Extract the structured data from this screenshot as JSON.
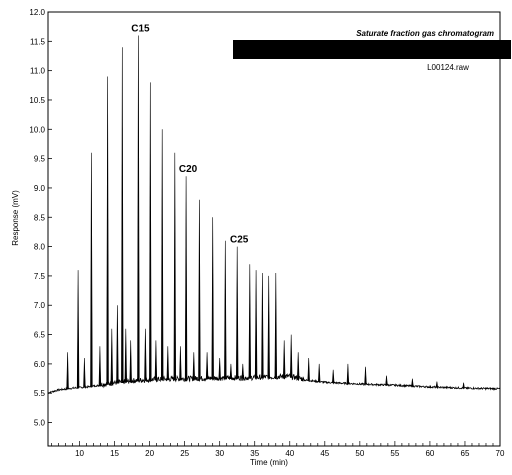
{
  "chart_data": {
    "type": "line",
    "title": "Saturate fraction gas chromatogram",
    "file_label": "L00124.raw",
    "legend_bar_color": "#000000",
    "xlabel": "Time (min)",
    "ylabel": "Response (mV)",
    "xlim": [
      5.5,
      70
    ],
    "ylim": [
      4.6,
      12.0
    ],
    "x_ticks": [
      "10",
      "15",
      "20",
      "25",
      "30",
      "35",
      "40",
      "45",
      "50",
      "55",
      "60",
      "65",
      "70"
    ],
    "x_tick_values": [
      10,
      15,
      20,
      25,
      30,
      35,
      40,
      45,
      50,
      55,
      60,
      65,
      70
    ],
    "y_ticks": [
      "5.0",
      "5.5",
      "6.0",
      "6.5",
      "7.0",
      "7.5",
      "8.0",
      "8.5",
      "9.0",
      "9.5",
      "10.0",
      "10.5",
      "11.0",
      "11.5",
      "12.0"
    ],
    "y_tick_values": [
      5.0,
      5.5,
      6.0,
      6.5,
      7.0,
      7.5,
      8.0,
      8.5,
      9.0,
      9.5,
      10.0,
      10.5,
      11.0,
      11.5,
      12.0
    ],
    "baseline": {
      "x": [
        5.5,
        7,
        9,
        11,
        13,
        15,
        18,
        21,
        25,
        30,
        35,
        40,
        42,
        45,
        50,
        55,
        60,
        65,
        70
      ],
      "y": [
        5.5,
        5.55,
        5.58,
        5.6,
        5.63,
        5.66,
        5.7,
        5.72,
        5.73,
        5.74,
        5.75,
        5.77,
        5.72,
        5.68,
        5.65,
        5.63,
        5.6,
        5.58,
        5.57
      ]
    },
    "peaks": {
      "x": [
        8.3,
        9.8,
        10.7,
        11.7,
        12.9,
        14.0,
        14.6,
        15.4,
        16.1,
        16.6,
        17.3,
        18.4,
        19.4,
        20.1,
        20.9,
        21.8,
        22.6,
        23.6,
        24.4,
        25.2,
        26.3,
        27.1,
        28.2,
        29.0,
        30.0,
        30.8,
        31.6,
        32.5,
        33.3,
        34.3,
        35.2,
        36.1,
        37.0,
        38.0,
        39.2,
        40.2,
        41.2,
        42.7,
        44.2,
        46.2,
        48.3,
        50.8,
        53.8,
        57.5,
        61.0,
        64.8
      ],
      "y": [
        6.2,
        7.6,
        6.1,
        9.6,
        6.3,
        10.9,
        6.6,
        7.0,
        11.4,
        6.6,
        6.4,
        11.6,
        6.6,
        10.8,
        6.4,
        10.0,
        6.3,
        9.6,
        6.3,
        9.2,
        6.2,
        8.8,
        6.2,
        8.5,
        6.1,
        8.1,
        6.0,
        8.0,
        6.0,
        7.7,
        7.6,
        7.55,
        7.5,
        7.55,
        6.4,
        6.5,
        6.2,
        6.1,
        6.0,
        5.9,
        6.0,
        5.95,
        5.8,
        5.75,
        5.7,
        5.68
      ]
    },
    "annotations": [
      {
        "text": "C15",
        "x": 18.4,
        "y": 11.6
      },
      {
        "text": "C20",
        "x": 25.2,
        "y": 9.2
      },
      {
        "text": "C25",
        "x": 32.5,
        "y": 8.0
      }
    ],
    "grid": false,
    "legend": "top-right"
  }
}
